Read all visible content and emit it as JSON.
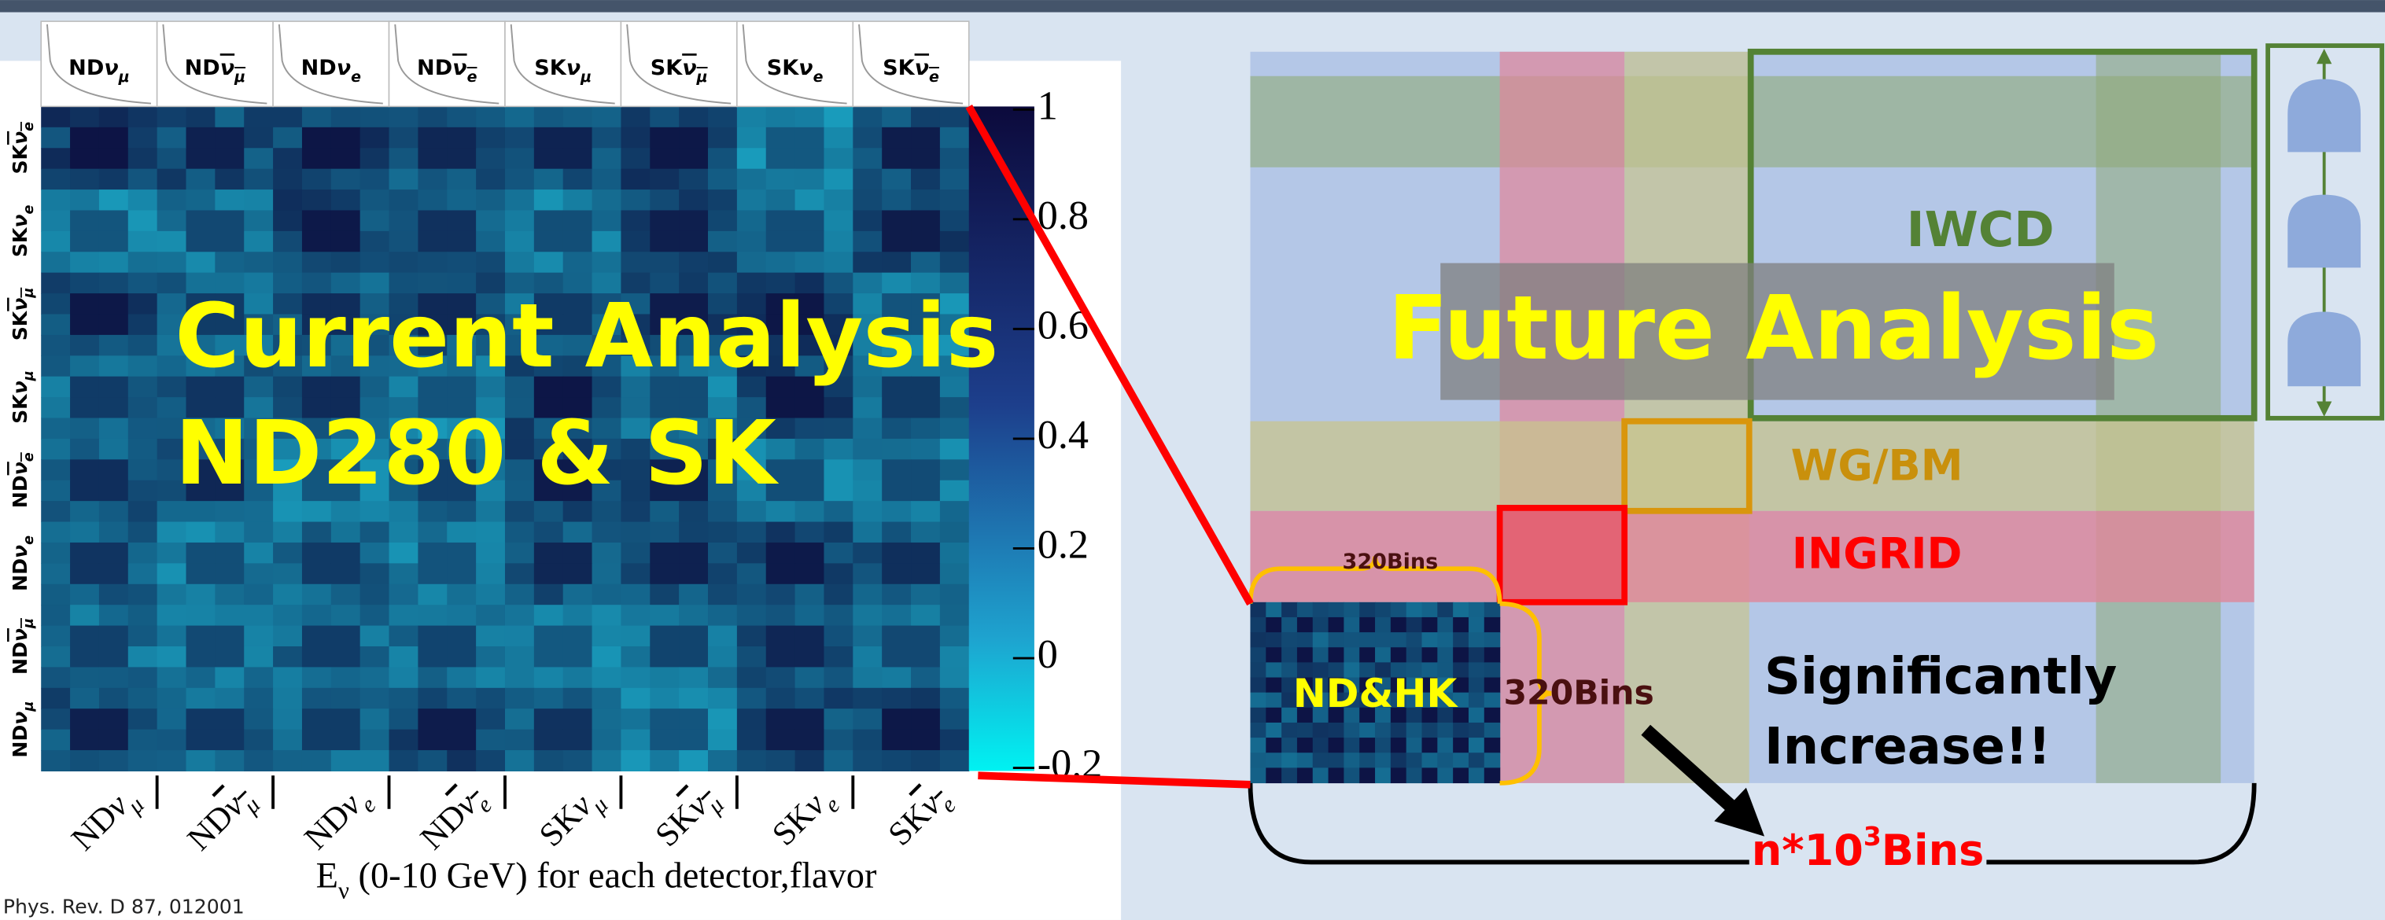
{
  "left_panel": {
    "detector_labels": [
      {
        "detector": "ND",
        "nu": "ν",
        "flavor": "μ",
        "anti": false
      },
      {
        "detector": "ND",
        "nu": "ν",
        "flavor": "μ",
        "anti": true
      },
      {
        "detector": "ND",
        "nu": "ν",
        "flavor": "e",
        "anti": false
      },
      {
        "detector": "ND",
        "nu": "ν",
        "flavor": "e",
        "anti": true
      },
      {
        "detector": "SK",
        "nu": "ν",
        "flavor": "μ",
        "anti": false
      },
      {
        "detector": "SK",
        "nu": "ν",
        "flavor": "μ",
        "anti": true
      },
      {
        "detector": "SK",
        "nu": "ν",
        "flavor": "e",
        "anti": false
      },
      {
        "detector": "SK",
        "nu": "ν",
        "flavor": "e",
        "anti": true
      }
    ],
    "colorbar_ticks": [
      "1",
      "0.8",
      "0.6",
      "0.4",
      "0.2",
      "0",
      "-0.2"
    ],
    "x_axis_title": {
      "symbol": "E",
      "subscript": "ν",
      "rest": " (0-10 GeV) for each detector,flavor"
    },
    "overlay": [
      "Current Analysis",
      "ND280 & SK"
    ],
    "citation": "Phys. Rev. D 87, 012001"
  },
  "right_panel": {
    "title": "Future Analysis",
    "regions": [
      "IWCD",
      "WG/BM",
      "INGRID"
    ],
    "small_matrix": "ND&HK",
    "bins_top": "320Bins",
    "bins_side": "320Bins",
    "note": [
      "Significantly",
      "Increase!!"
    ],
    "total": {
      "base": "n*10",
      "sup": "3",
      "unit": "Bins"
    }
  }
}
